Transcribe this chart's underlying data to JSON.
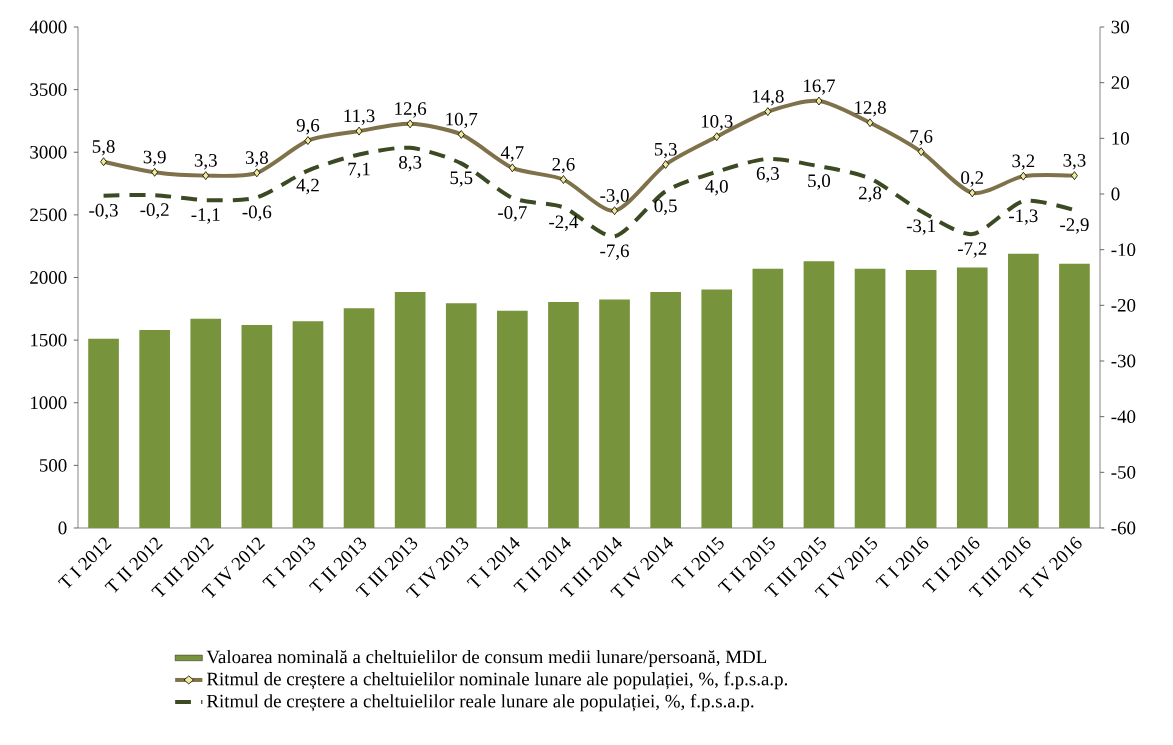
{
  "chart_data": {
    "type": "bar",
    "categories": [
      "T I 2012",
      "T II 2012",
      "T III 2012",
      "T IV 2012",
      "T I 2013",
      "T II 2013",
      "T III 2013",
      "T IV 2013",
      "T I 2014",
      "T II 2014",
      "T III 2014",
      "T IV 2014",
      "T I 2015",
      "T II 2015",
      "T III 2015",
      "T IV 2015",
      "T I 2016",
      "T II 2016",
      "T III 2016",
      "T IV 2016"
    ],
    "series": [
      {
        "name": "Valoarea nominală a cheltuielilor de consum medii lunare/persoană, MDL",
        "color": "#77933c",
        "values": [
          1510,
          1580,
          1670,
          1620,
          1650,
          1755,
          1885,
          1795,
          1735,
          1805,
          1825,
          1885,
          1905,
          2070,
          2130,
          2070,
          2060,
          2080,
          2190,
          2110
        ]
      },
      {
        "name": "Ritmul de creștere a cheltuielilor nominale lunare ale populației, %, f.p.s.a.p.",
        "type": "line",
        "axis": "y2",
        "color": "#7f7149",
        "marker": "diamond",
        "line_style": "solid",
        "values": [
          5.8,
          3.9,
          3.3,
          3.8,
          9.6,
          11.3,
          12.6,
          10.7,
          4.7,
          2.6,
          -3.0,
          5.3,
          10.3,
          14.8,
          16.7,
          12.8,
          7.6,
          0.2,
          3.2,
          3.3
        ],
        "value_labels": [
          "5,8",
          "3,9",
          "3,3",
          "3,8",
          "9,6",
          "11,3",
          "12,6",
          "10,7",
          "4,7",
          "2,6",
          "-3,0",
          "5,3",
          "10,3",
          "14,8",
          "16,7",
          "12,8",
          "7,6",
          "0,2",
          "3,2",
          "3,3"
        ]
      },
      {
        "name": "Ritmul de creștere a cheltuielilor reale lunare ale populației, %, f.p.s.a.p.",
        "type": "line",
        "axis": "y2",
        "color": "#3b4a22",
        "marker": "none",
        "line_style": "dashed",
        "values": [
          -0.3,
          -0.2,
          -1.1,
          -0.6,
          4.2,
          7.1,
          8.3,
          5.5,
          -0.7,
          -2.4,
          -7.6,
          0.5,
          4.0,
          6.3,
          5.0,
          2.8,
          -3.1,
          -7.2,
          -1.3,
          -2.9
        ],
        "value_labels": [
          "-0,3",
          "-0,2",
          "-1,1",
          "-0,6",
          "4,2",
          "7,1",
          "8,3",
          "5,5",
          "-0,7",
          "-2,4",
          "-7,6",
          "0,5",
          "4,0",
          "6,3",
          "5,0",
          "2,8",
          "-3,1",
          "-7,2",
          "-1,3",
          "-2,9"
        ]
      }
    ],
    "ylim": [
      0,
      4000
    ],
    "yticks": [
      0,
      500,
      1000,
      1500,
      2000,
      2500,
      3000,
      3500,
      4000
    ],
    "y2lim": [
      -60,
      30
    ],
    "y2ticks": [
      -60,
      -50,
      -40,
      -30,
      -20,
      -10,
      0,
      10,
      20,
      30
    ],
    "legend": "bottom"
  }
}
